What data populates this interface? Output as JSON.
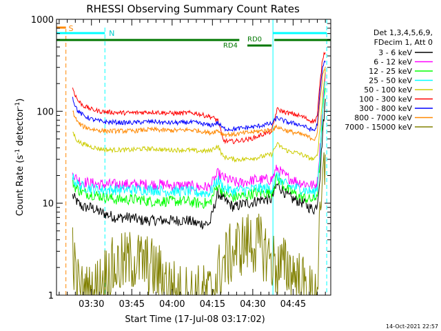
{
  "chart_data": {
    "type": "line",
    "title": "RHESSI Observing Summary Count Rates",
    "xlabel": "Start Time (17-Jul-08 03:17:02)",
    "ylabel_main": "Count Rate (s",
    "ylabel_sup1": "-1",
    "ylabel_mid": " detector",
    "ylabel_sup2": "-1",
    "ylabel_end": ")",
    "y_scale": "log",
    "ylim": [
      1,
      1000
    ],
    "xlim_minutes": [
      0,
      102
    ],
    "x_ticks": [
      {
        "min": 13,
        "label": "03:30"
      },
      {
        "min": 28,
        "label": "03:45"
      },
      {
        "min": 43,
        "label": "04:00"
      },
      {
        "min": 58,
        "label": "04:15"
      },
      {
        "min": 73,
        "label": "04:30"
      },
      {
        "min": 88,
        "label": "04:45"
      }
    ],
    "y_ticks": [
      {
        "value": 1,
        "label": "1"
      },
      {
        "value": 10,
        "label": "10"
      },
      {
        "value": 100,
        "label": "100"
      },
      {
        "value": 1000,
        "label": "1000"
      }
    ],
    "legend_header": [
      "Det 1,3,4,5,6,9,",
      "FDecim 1, Att 0"
    ],
    "legend_position": "right",
    "timestamp": "14-Oct-2021 22:57",
    "flags": {
      "saa_label": "S",
      "night_label": "N",
      "rd0_label": "RD0",
      "rd4_label": "RD4"
    },
    "x_minutes": [
      6,
      7,
      8,
      10,
      13,
      16,
      19,
      22,
      25,
      28,
      31,
      34,
      37,
      40,
      43,
      46,
      49,
      52,
      55,
      57,
      60,
      62,
      64,
      66,
      68,
      70,
      72,
      74,
      76,
      78,
      80,
      82,
      84,
      86,
      88,
      90,
      92,
      94,
      96,
      97,
      98,
      99,
      100
    ],
    "series": [
      {
        "name": "3 - 6 keV",
        "color": "#000000",
        "values": [
          12,
          11,
          10,
          9,
          9,
          8,
          7.5,
          7,
          7,
          7,
          6.5,
          6.5,
          6.5,
          6.5,
          6.5,
          6.5,
          6.5,
          6,
          6,
          6,
          13,
          11,
          10,
          9,
          9.5,
          10,
          10,
          10.5,
          11,
          11,
          11,
          16,
          14,
          12,
          11,
          10.5,
          10,
          9,
          8.5,
          10,
          20,
          60,
          130
        ]
      },
      {
        "name": "6 - 12 keV",
        "color": "#ff00ff",
        "values": [
          22,
          19,
          18,
          17,
          16.5,
          16,
          16,
          16,
          16,
          16,
          16,
          16,
          16,
          16,
          15.5,
          15.5,
          15.5,
          15,
          15,
          15,
          21,
          19,
          18,
          17,
          16.5,
          17,
          17.5,
          18,
          18,
          18,
          18,
          24,
          21,
          19,
          18,
          17,
          16.5,
          16,
          15.5,
          17,
          40,
          110,
          250
        ]
      },
      {
        "name": "12 - 25 keV",
        "color": "#00ff00",
        "values": [
          17,
          15,
          14,
          13,
          12.5,
          12,
          11.5,
          11,
          11,
          11,
          11,
          10.5,
          10.5,
          10.5,
          10.5,
          10.5,
          10.5,
          10,
          10,
          10,
          16,
          13,
          12,
          11.5,
          12,
          12,
          12.5,
          13,
          13,
          13,
          13,
          19,
          16,
          14,
          13,
          12,
          11.5,
          11,
          11,
          13,
          30,
          90,
          200
        ]
      },
      {
        "name": "25 - 50 keV",
        "color": "#00ffff",
        "values": [
          19,
          17,
          16,
          15,
          14.5,
          14,
          14,
          14,
          14,
          14,
          14,
          14,
          14,
          13.5,
          13.5,
          13.5,
          13.5,
          13,
          13,
          13,
          18,
          15,
          14,
          13.5,
          14,
          14,
          14,
          14.5,
          14.5,
          14.5,
          14.5,
          20,
          17,
          15.5,
          15,
          14.5,
          14,
          13.5,
          13,
          15,
          35,
          100,
          220
        ]
      },
      {
        "name": "50 - 100 keV",
        "color": "#cccc00",
        "values": [
          60,
          52,
          47,
          44,
          41,
          39,
          38,
          38,
          38,
          38,
          39,
          39,
          39,
          38,
          38,
          38,
          38,
          37,
          37,
          37,
          42,
          32,
          31,
          30,
          30,
          30,
          31,
          31,
          32,
          33,
          34,
          44,
          40,
          37,
          36,
          35,
          33,
          31,
          30,
          33,
          65,
          150,
          280
        ]
      },
      {
        "name": "100 - 300 keV",
        "color": "#ff0000",
        "values": [
          180,
          150,
          130,
          115,
          105,
          100,
          98,
          97,
          96,
          96,
          97,
          98,
          98,
          96,
          95,
          95,
          96,
          95,
          90,
          88,
          80,
          48,
          47,
          47,
          48,
          49,
          50,
          52,
          55,
          58,
          60,
          105,
          100,
          96,
          93,
          90,
          86,
          80,
          78,
          90,
          200,
          380,
          460
        ]
      },
      {
        "name": "300 - 800 keV",
        "color": "#0000ff",
        "values": [
          140,
          115,
          100,
          90,
          82,
          78,
          76,
          76,
          75,
          75,
          76,
          77,
          77,
          75,
          75,
          75,
          76,
          75,
          72,
          70,
          75,
          65,
          64,
          64,
          65,
          66,
          67,
          68,
          70,
          72,
          73,
          85,
          80,
          76,
          74,
          72,
          69,
          64,
          62,
          72,
          160,
          300,
          360
        ]
      },
      {
        "name": "800 - 7000 keV",
        "color": "#ff8800",
        "values": [
          100,
          85,
          75,
          68,
          64,
          62,
          61,
          61,
          61,
          61,
          62,
          63,
          63,
          62,
          62,
          62,
          63,
          62,
          60,
          58,
          62,
          56,
          56,
          56,
          57,
          58,
          59,
          60,
          61,
          62,
          62,
          68,
          64,
          61,
          59,
          57,
          55,
          52,
          50,
          58,
          130,
          250,
          300
        ]
      },
      {
        "name": "7000 - 15000 keV",
        "color": "#808000",
        "values": [
          4,
          1.5,
          1.2,
          1,
          1,
          1.3,
          1.8,
          2,
          2.2,
          2.4,
          2.3,
          2.1,
          1.8,
          1.5,
          1.2,
          1,
          1,
          1,
          1,
          1,
          1.6,
          2.2,
          2.6,
          3,
          3.4,
          3.6,
          3.8,
          3.6,
          3.4,
          2.9,
          2.4,
          2,
          2,
          2,
          1.8,
          1.5,
          1.2,
          1,
          1,
          1.4,
          5,
          15,
          28
        ]
      }
    ]
  }
}
